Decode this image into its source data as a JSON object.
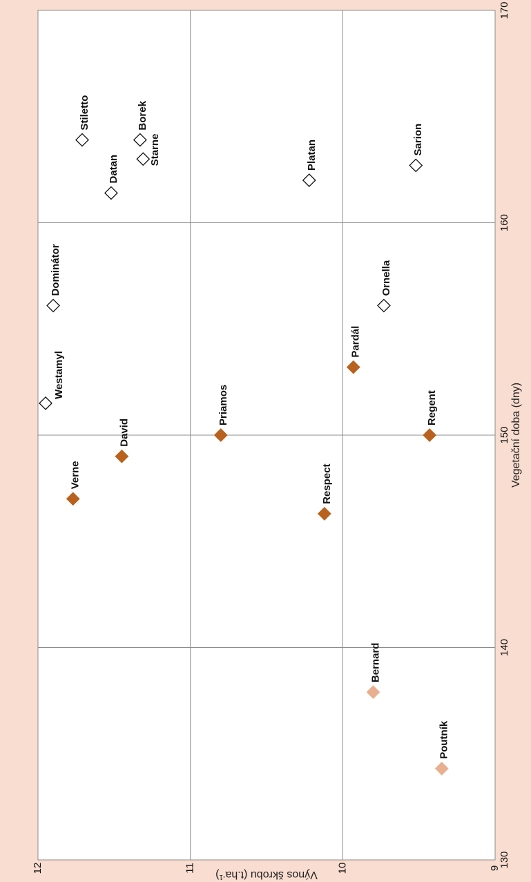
{
  "chart_data": {
    "type": "scatter",
    "title": "",
    "xlabel": "Vegetační doba (dny)",
    "ylabel": "Výnos škrobu (t.ha-1)",
    "ylabel_parts": {
      "main": "Výnos škrobu (t.ha",
      "sup": "-1",
      "end": ")"
    },
    "xlim": [
      130,
      170
    ],
    "ylim": [
      9,
      12
    ],
    "x_ticks": [
      130,
      140,
      150,
      160,
      170
    ],
    "y_ticks": [
      9,
      10,
      11,
      12
    ],
    "x_tick_labels": [
      "130",
      "140",
      "150",
      "160",
      "170"
    ],
    "y_tick_labels": [
      "9",
      "10",
      "11",
      "12"
    ],
    "grid": true,
    "orientation": "rotated-90-clockwise",
    "colors": {
      "background": "#f8ddd0",
      "plot_area": "#ffffff",
      "grid": "#8c8c8c",
      "group_dark": "#b8621e",
      "group_light": "#e8b08e",
      "group_hollow_stroke": "#111111"
    },
    "points": [
      {
        "name": "Stiletto",
        "x": 163.9,
        "y": 11.71,
        "group": "hollow"
      },
      {
        "name": "Borek",
        "x": 163.9,
        "y": 11.33,
        "group": "hollow"
      },
      {
        "name": "Starne",
        "x": 163.0,
        "y": 11.31,
        "group": "hollow"
      },
      {
        "name": "Datan",
        "x": 161.4,
        "y": 11.52,
        "group": "hollow"
      },
      {
        "name": "Platan",
        "x": 162.0,
        "y": 10.22,
        "group": "hollow"
      },
      {
        "name": "Sarion",
        "x": 162.7,
        "y": 9.52,
        "group": "hollow"
      },
      {
        "name": "Dominátor",
        "x": 156.1,
        "y": 11.9,
        "group": "hollow"
      },
      {
        "name": "Ornella",
        "x": 156.1,
        "y": 9.73,
        "group": "hollow"
      },
      {
        "name": "Westamyl",
        "x": 151.5,
        "y": 11.95,
        "group": "hollow"
      },
      {
        "name": "Pardál",
        "x": 153.2,
        "y": 9.93,
        "group": "dark"
      },
      {
        "name": "Priamos",
        "x": 150.0,
        "y": 10.8,
        "group": "dark"
      },
      {
        "name": "Regent",
        "x": 150.0,
        "y": 9.43,
        "group": "dark"
      },
      {
        "name": "David",
        "x": 149.0,
        "y": 11.45,
        "group": "dark"
      },
      {
        "name": "Verne",
        "x": 147.0,
        "y": 11.77,
        "group": "dark"
      },
      {
        "name": "Respect",
        "x": 146.3,
        "y": 10.12,
        "group": "dark"
      },
      {
        "name": "Bernard",
        "x": 137.9,
        "y": 9.8,
        "group": "light"
      },
      {
        "name": "Poutník",
        "x": 134.3,
        "y": 9.35,
        "group": "light"
      }
    ]
  }
}
